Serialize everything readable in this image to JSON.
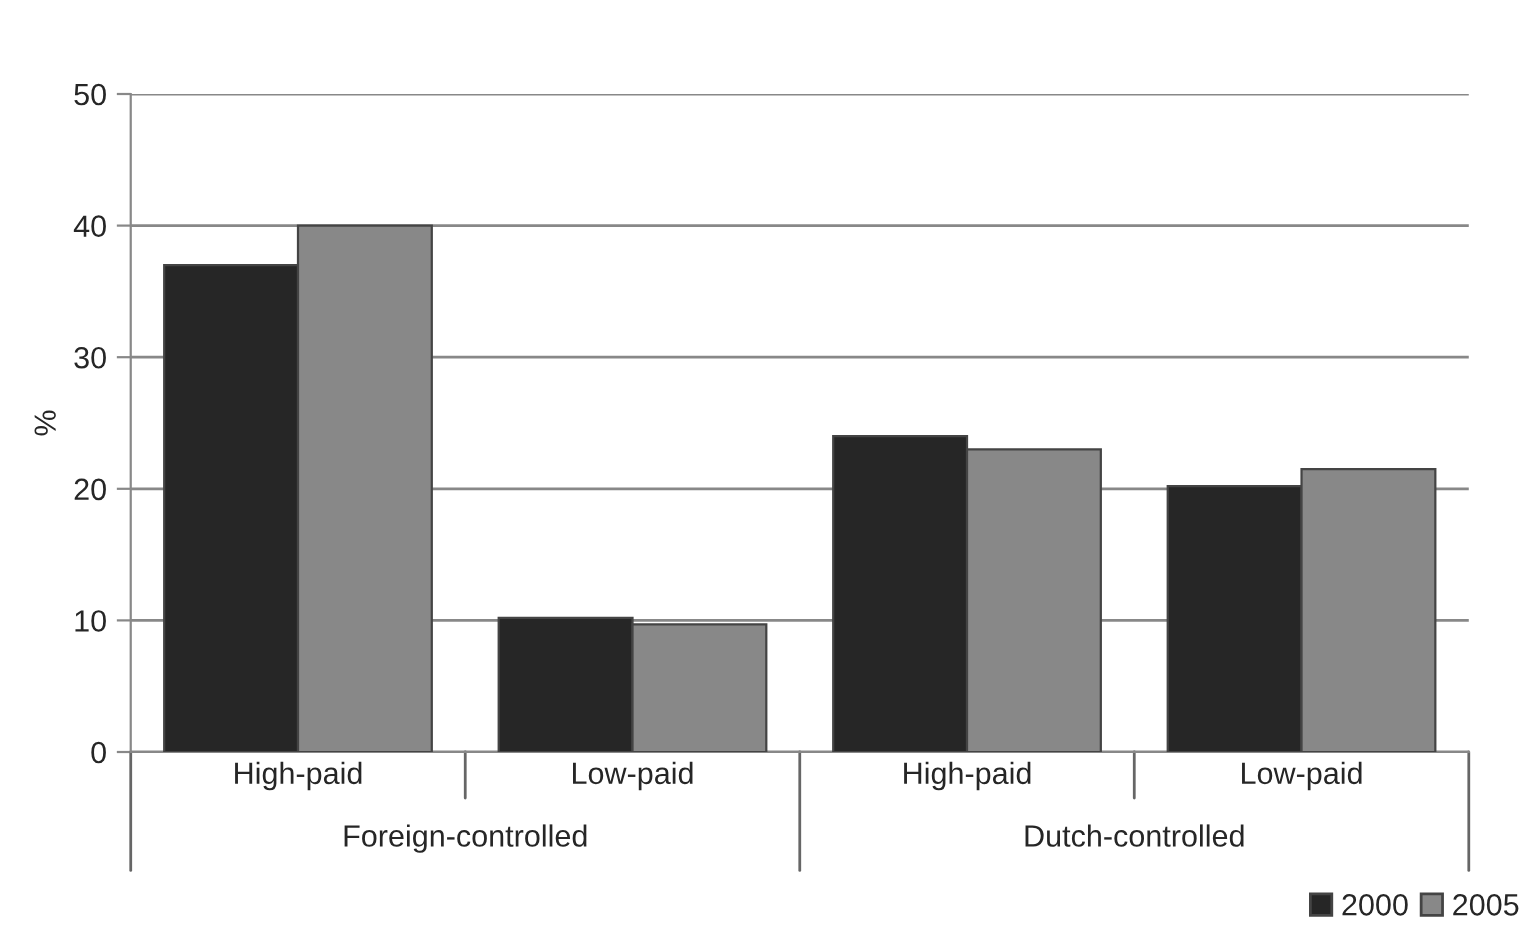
{
  "chart_data": {
    "type": "bar",
    "ylabel": "%",
    "categories": [
      "High-paid",
      "Low-paid",
      "High-paid",
      "Low-paid"
    ],
    "series": [
      {
        "name": "2000",
        "color": "#262626",
        "values": [
          37,
          10.2,
          24,
          20.2
        ]
      },
      {
        "name": "2005",
        "color": "#888888",
        "values": [
          40,
          9.7,
          23,
          21.5
        ]
      }
    ],
    "annotations": [
      "Foreign-controlled",
      "Dutch-controlled"
    ],
    "ylim": [
      0,
      50
    ],
    "yticks": [
      0,
      10,
      20,
      30,
      40,
      50
    ],
    "grid": "y",
    "legend": "bottom right"
  }
}
